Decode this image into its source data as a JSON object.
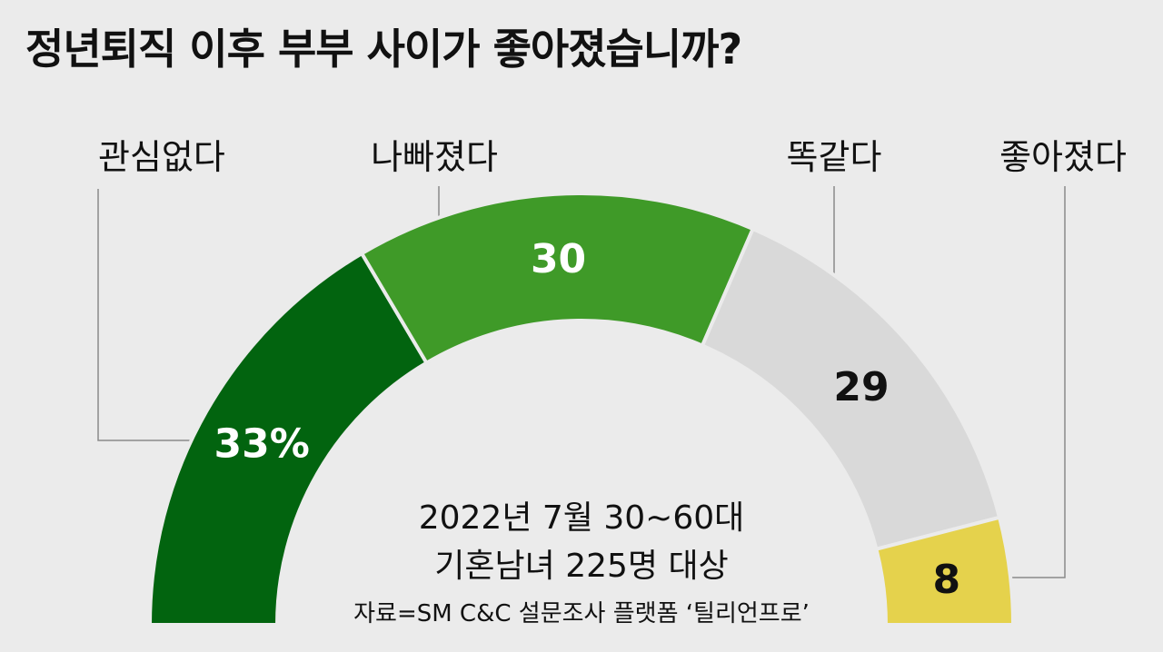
{
  "chart_data": {
    "type": "pie",
    "variant": "half-donut",
    "title": "정년퇴직 이후 부부 사이가 좋아졌습니까?",
    "unit": "%",
    "categories": [
      "관심없다",
      "나빠졌다",
      "똑같다",
      "좋아졌다"
    ],
    "values": [
      33,
      30,
      29,
      8
    ],
    "value_labels": [
      "33%",
      "30",
      "29",
      "8"
    ],
    "colors": [
      "#02640f",
      "#3f9a28",
      "#d9d9d9",
      "#e5d24c"
    ],
    "label_colors": [
      "#ffffff",
      "#ffffff",
      "#111111",
      "#111111"
    ],
    "legend": "leader-lines"
  },
  "notes": {
    "line1": "2022년 7월 30~60대",
    "line2": "기혼남녀 225명 대상",
    "source": "자료=SM C&C 설문조사 플랫폼 ‘틸리언프로’"
  },
  "style": {
    "background": "#ebebeb",
    "separator": "#ebebeb",
    "leader_line": "#8a8a8a"
  }
}
